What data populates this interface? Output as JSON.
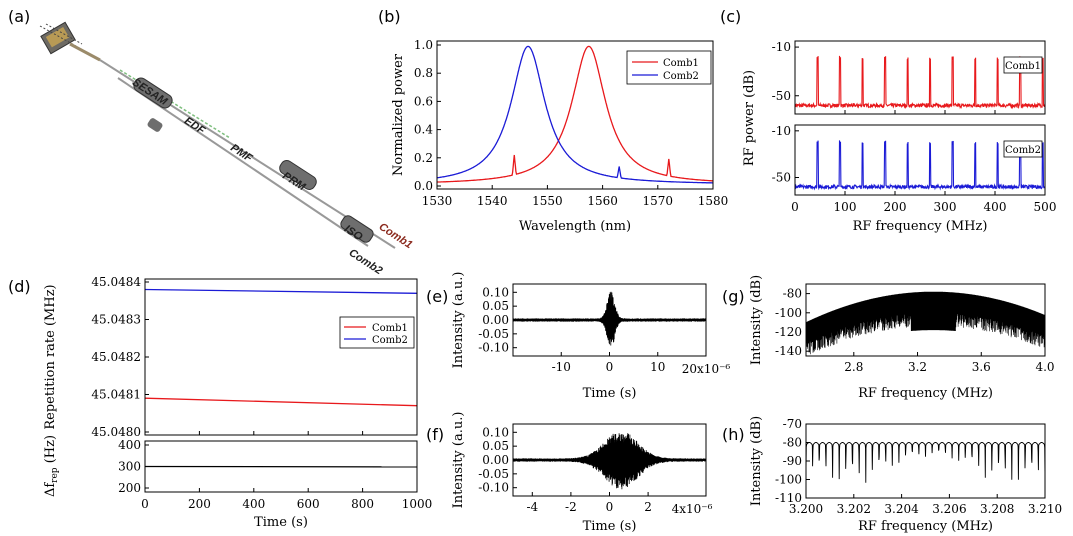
{
  "panels": {
    "a": "(a)",
    "b": "(b)",
    "c": "(c)",
    "d": "(d)",
    "e": "(e)",
    "f": "(f)",
    "g": "(g)",
    "h": "(h)"
  },
  "diagram_a": {
    "labels": [
      "SESAM",
      "EDF",
      "PMF",
      "PRM",
      "ISO",
      "Comb1",
      "Comb2"
    ]
  },
  "chart_data": [
    {
      "id": "b",
      "type": "line",
      "xlabel": "Wavelength (nm)",
      "ylabel": "Normalized power",
      "xlim": [
        1530,
        1580
      ],
      "ylim": [
        0,
        1.0
      ],
      "xticks": [
        1530,
        1540,
        1550,
        1560,
        1570,
        1580
      ],
      "yticks": [
        "0.0",
        "0.2",
        "0.4",
        "0.6",
        "0.8",
        "1.0"
      ],
      "legend_position": "top-right",
      "series": [
        {
          "name": "Comb1",
          "color": "#e8191c",
          "shape": "lorentzian",
          "center": 1557.5,
          "fwhm": 7.5,
          "spikes": [
            [
              1544.0,
              0.14
            ],
            [
              1572.0,
              0.12
            ]
          ]
        },
        {
          "name": "Comb2",
          "color": "#1b1bd6",
          "shape": "lorentzian",
          "center": 1546.5,
          "fwhm": 7.5,
          "spikes": [
            [
              1563.0,
              0.08
            ]
          ]
        }
      ]
    },
    {
      "id": "c",
      "type": "line",
      "xlabel": "RF frequency (MHz)",
      "ylabel": "RF power (dB)",
      "xlim": [
        0,
        500
      ],
      "xticks": [
        0,
        100,
        200,
        300,
        400,
        500
      ],
      "subplots": [
        {
          "name": "Comb1",
          "color": "#e8191c",
          "ylim": [
            -65,
            -5
          ],
          "yticks": [
            -10,
            -50
          ],
          "floor": -58,
          "peak": -22,
          "spacing": 45.048
        },
        {
          "name": "Comb2",
          "color": "#1b1bd6",
          "ylim": [
            -65,
            -5
          ],
          "yticks": [
            -10,
            -50
          ],
          "floor": -58,
          "peak": -23,
          "spacing": 45.048
        }
      ]
    },
    {
      "id": "d",
      "type": "line",
      "xlabel": "Time (s)",
      "ylabel_top": "Repetition rate (MHz)",
      "ylabel_bottom": "Δf",
      "ylabel_bottom_sub": "rep",
      "ylabel_bottom_unit": " (Hz)",
      "xlim": [
        0,
        1000
      ],
      "xticks": [
        0,
        200,
        400,
        600,
        800,
        1000
      ],
      "top": {
        "ylim": [
          45.048,
          45.0484
        ],
        "yticks": [
          "45.0480",
          "45.0481",
          "45.0482",
          "45.0483",
          "45.0484"
        ],
        "legend_position": "right",
        "series": [
          {
            "name": "Comb1",
            "color": "#e8191c",
            "x": [
              0,
              1000
            ],
            "y": [
              45.04809,
              45.04807
            ]
          },
          {
            "name": "Comb2",
            "color": "#1b1bd6",
            "x": [
              0,
              1000
            ],
            "y": [
              45.04838,
              45.04837
            ]
          }
        ]
      },
      "bottom": {
        "ylim": [
          200,
          400
        ],
        "yticks": [
          200,
          300,
          400
        ],
        "series": [
          {
            "color": "#000000",
            "x": [
              0,
              1000
            ],
            "y": [
              300,
              298
            ]
          }
        ]
      }
    },
    {
      "id": "e",
      "type": "line",
      "xlabel": "Time (s)",
      "ylabel": "Intensity (a.u.)",
      "xlim": [
        -20,
        20
      ],
      "xticks": [
        -10,
        0,
        10
      ],
      "xexp": "20x10⁻⁶",
      "ylim": [
        -0.13,
        0.13
      ],
      "yticks": [
        "0.10",
        "0.05",
        "0.00",
        "-0.05",
        "-0.10"
      ]
    },
    {
      "id": "f",
      "type": "line",
      "xlabel": "Time (s)",
      "ylabel": "Intensity (a.u.)",
      "xlim": [
        -5,
        5
      ],
      "xticks": [
        -4,
        -2,
        0,
        2
      ],
      "xexp": "4x10⁻⁶",
      "ylim": [
        -0.13,
        0.13
      ],
      "yticks": [
        "0.10",
        "0.05",
        "0.00",
        "-0.05",
        "-0.10"
      ]
    },
    {
      "id": "g",
      "type": "line",
      "xlabel": "RF frequency (MHz)",
      "ylabel": "Intensity (dB)",
      "xlim": [
        2.5,
        4.0
      ],
      "xticks": [
        "2.8",
        "3.2",
        "3.6",
        "4.0"
      ],
      "ylim": [
        -145,
        -70
      ],
      "yticks": [
        -80,
        -100,
        -120,
        -140
      ]
    },
    {
      "id": "h",
      "type": "line",
      "xlabel": "RF frequency (MHz)",
      "ylabel": "Intensity (dB)",
      "xlim": [
        3.2,
        3.21
      ],
      "xticks": [
        "3.200",
        "3.202",
        "3.204",
        "3.206",
        "3.208",
        "3.210"
      ],
      "ylim": [
        -110,
        -70
      ],
      "yticks": [
        -70,
        -80,
        -90,
        -100,
        -110
      ]
    }
  ]
}
